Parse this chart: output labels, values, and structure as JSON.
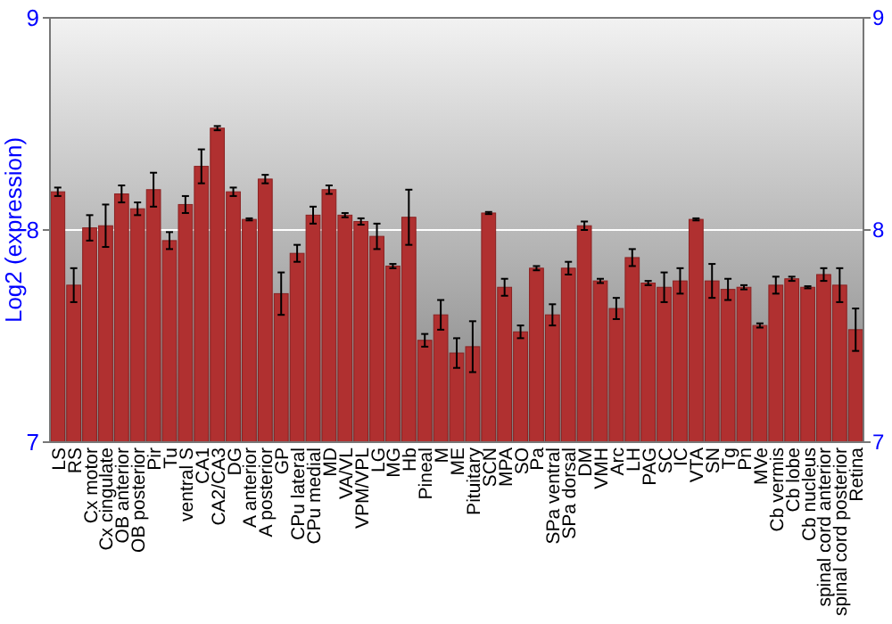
{
  "chart_data": {
    "type": "bar",
    "ylabel": "Log2 (expression)",
    "categories": [
      "LS",
      "RS",
      "Cx motor",
      "Cx cingulate",
      "OB anterior",
      "OB posterior",
      "Pir",
      "Tu",
      "ventral S",
      "CA1",
      "CA2/CA3",
      "DG",
      "A anterior",
      "A posterior",
      "GP",
      "CPu lateral",
      "CPu medial",
      "MD",
      "VA/VL",
      "VPM/VPL",
      "LG",
      "MG",
      "Hb",
      "Pineal",
      "M",
      "ME",
      "Pituitary",
      "SCN",
      "MPA",
      "SO",
      "Pa",
      "SPa ventral",
      "SPa dorsal",
      "DM",
      "VMH",
      "Arc",
      "LH",
      "PAG",
      "SC",
      "IC",
      "VTA",
      "SN",
      "Tg",
      "Pn",
      "MVe",
      "Cb vermis",
      "Cb lobe",
      "Cb nucleus",
      "spinal cord anterior",
      "spinal cord posterior",
      "Retina"
    ],
    "values": [
      8.18,
      7.74,
      8.01,
      8.02,
      8.17,
      8.1,
      8.19,
      7.95,
      8.12,
      8.3,
      8.48,
      8.18,
      8.05,
      8.24,
      7.7,
      7.89,
      8.07,
      8.19,
      8.07,
      8.04,
      7.97,
      7.83,
      8.06,
      7.48,
      7.6,
      7.42,
      7.45,
      8.08,
      7.73,
      7.52,
      7.82,
      7.6,
      7.82,
      8.02,
      7.76,
      7.63,
      7.87,
      7.75,
      7.73,
      7.76,
      8.05,
      7.76,
      7.72,
      7.73,
      7.55,
      7.74,
      7.77,
      7.73,
      7.79,
      7.74,
      7.53
    ],
    "errors": [
      0.02,
      0.08,
      0.06,
      0.1,
      0.04,
      0.03,
      0.08,
      0.04,
      0.04,
      0.08,
      0.01,
      0.02,
      0.005,
      0.02,
      0.1,
      0.04,
      0.04,
      0.02,
      0.01,
      0.015,
      0.06,
      0.01,
      0.13,
      0.03,
      0.07,
      0.07,
      0.12,
      0.005,
      0.04,
      0.03,
      0.01,
      0.05,
      0.03,
      0.02,
      0.01,
      0.05,
      0.04,
      0.01,
      0.07,
      0.06,
      0.005,
      0.08,
      0.05,
      0.01,
      0.01,
      0.04,
      0.01,
      0.005,
      0.03,
      0.08,
      0.1
    ],
    "color": "#b03030",
    "ylim": [
      7,
      9
    ],
    "yticks": [
      7,
      8,
      9
    ],
    "y2lim": [
      7,
      9
    ],
    "y2ticks": [
      7,
      8,
      9
    ],
    "grid": "y"
  }
}
